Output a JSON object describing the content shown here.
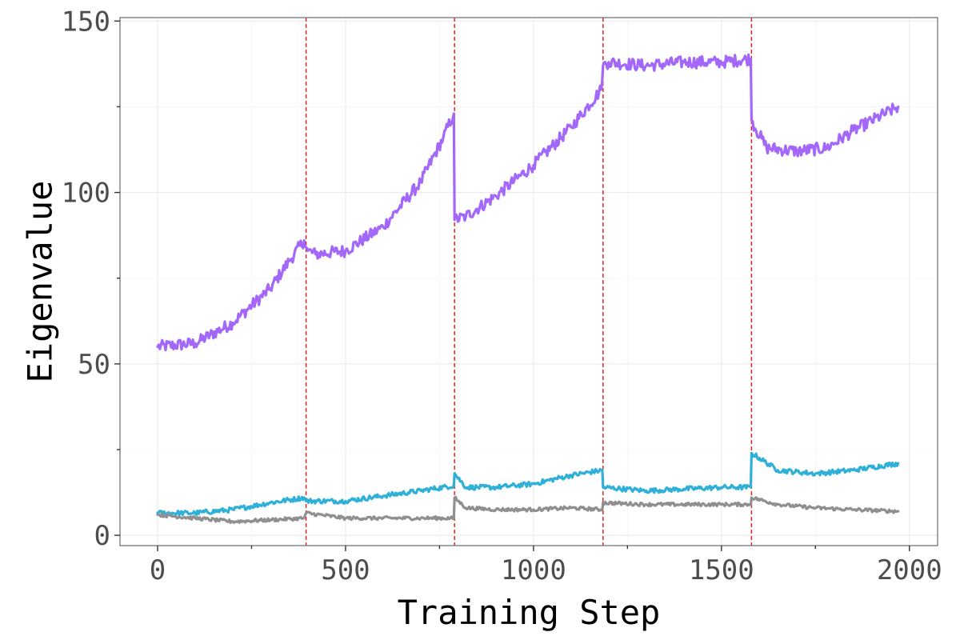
{
  "chart_data": {
    "type": "line",
    "title": "",
    "xlabel": "Training Step",
    "ylabel": "Eigenvalue",
    "xlim": [
      -100,
      2075
    ],
    "ylim": [
      -3,
      151
    ],
    "x_ticks": [
      0,
      500,
      1000,
      1500,
      2000
    ],
    "y_ticks": [
      0,
      50,
      100,
      150
    ],
    "grid": true,
    "legend": "none",
    "vlines": [
      395,
      790,
      1185,
      1580
    ],
    "vline_color": "#e41a1c",
    "series": [
      {
        "color": "#a367fa",
        "noise": 1.8,
        "points": [
          [
            0,
            55
          ],
          [
            100,
            56
          ],
          [
            200,
            62
          ],
          [
            300,
            72
          ],
          [
            350,
            80
          ],
          [
            390,
            86
          ],
          [
            395,
            84
          ],
          [
            400,
            83
          ],
          [
            420,
            82
          ],
          [
            500,
            83
          ],
          [
            600,
            90
          ],
          [
            700,
            103
          ],
          [
            760,
            116
          ],
          [
            788,
            123
          ],
          [
            790,
            92
          ],
          [
            820,
            93
          ],
          [
            900,
            99
          ],
          [
            1000,
            108
          ],
          [
            1100,
            119
          ],
          [
            1180,
            130
          ],
          [
            1185,
            137
          ],
          [
            1200,
            138
          ],
          [
            1300,
            137
          ],
          [
            1400,
            138
          ],
          [
            1500,
            138
          ],
          [
            1578,
            139
          ],
          [
            1580,
            121
          ],
          [
            1620,
            113
          ],
          [
            1700,
            112
          ],
          [
            1780,
            113
          ],
          [
            1850,
            118
          ],
          [
            1970,
            125
          ]
        ]
      },
      {
        "color": "#2eb0d9",
        "noise": 0.7,
        "points": [
          [
            0,
            6.5
          ],
          [
            100,
            6.5
          ],
          [
            200,
            7.5
          ],
          [
            300,
            9.5
          ],
          [
            390,
            11
          ],
          [
            395,
            10
          ],
          [
            500,
            10
          ],
          [
            600,
            11.5
          ],
          [
            700,
            13
          ],
          [
            788,
            14.5
          ],
          [
            790,
            18
          ],
          [
            820,
            14
          ],
          [
            900,
            14
          ],
          [
            1000,
            15
          ],
          [
            1100,
            17.5
          ],
          [
            1183,
            19
          ],
          [
            1185,
            14
          ],
          [
            1300,
            13
          ],
          [
            1400,
            13.5
          ],
          [
            1500,
            14
          ],
          [
            1578,
            14
          ],
          [
            1580,
            24
          ],
          [
            1650,
            19
          ],
          [
            1750,
            18
          ],
          [
            1850,
            19
          ],
          [
            1970,
            21
          ]
        ]
      },
      {
        "color": "#8f8f8f",
        "noise": 0.5,
        "points": [
          [
            0,
            6
          ],
          [
            100,
            5
          ],
          [
            200,
            4
          ],
          [
            300,
            4.5
          ],
          [
            390,
            5
          ],
          [
            395,
            6.5
          ],
          [
            500,
            5
          ],
          [
            600,
            5
          ],
          [
            700,
            5
          ],
          [
            788,
            5
          ],
          [
            790,
            11
          ],
          [
            820,
            8
          ],
          [
            900,
            7.5
          ],
          [
            1000,
            7.5
          ],
          [
            1100,
            8
          ],
          [
            1183,
            7.5
          ],
          [
            1185,
            9.5
          ],
          [
            1300,
            9
          ],
          [
            1400,
            9
          ],
          [
            1500,
            9
          ],
          [
            1578,
            9
          ],
          [
            1580,
            11
          ],
          [
            1650,
            9
          ],
          [
            1750,
            8
          ],
          [
            1850,
            7.5
          ],
          [
            1970,
            7
          ]
        ]
      }
    ]
  }
}
